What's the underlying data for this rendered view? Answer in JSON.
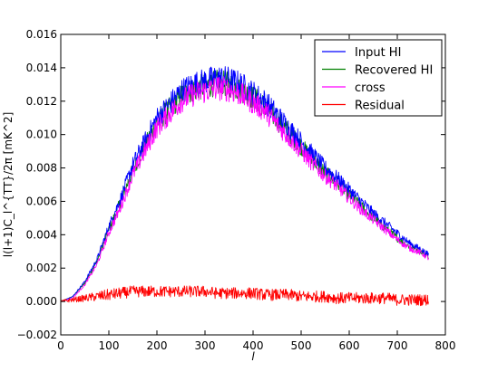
{
  "chart_data": {
    "type": "line",
    "title": "",
    "xlabel": "l",
    "ylabel": "l(l+1)C_l^{TT}/2π [mK^2]",
    "xlim": [
      0,
      800
    ],
    "ylim": [
      -0.002,
      0.016
    ],
    "xticks": [
      0,
      100,
      200,
      300,
      400,
      500,
      600,
      700,
      800
    ],
    "xtick_labels": [
      "0",
      "100",
      "200",
      "300",
      "400",
      "500",
      "600",
      "700",
      "800"
    ],
    "yticks": [
      -0.002,
      0.0,
      0.002,
      0.004,
      0.006,
      0.008,
      0.01,
      0.012,
      0.014,
      0.016
    ],
    "ytick_labels": [
      "−0.002",
      "0.000",
      "0.002",
      "0.004",
      "0.006",
      "0.008",
      "0.010",
      "0.012",
      "0.014",
      "0.016"
    ],
    "grid": false,
    "legend_position": "top-right",
    "series": [
      {
        "name": "Input HI",
        "color": "#0000ff",
        "x": [
          0,
          25,
          50,
          75,
          100,
          125,
          150,
          175,
          200,
          225,
          250,
          275,
          300,
          325,
          350,
          375,
          400,
          425,
          450,
          475,
          500,
          525,
          550,
          575,
          600,
          625,
          650,
          675,
          700,
          725,
          750,
          765
        ],
        "y": [
          0.0,
          0.0003,
          0.0012,
          0.0025,
          0.0045,
          0.0062,
          0.0082,
          0.0096,
          0.011,
          0.0118,
          0.0126,
          0.013,
          0.0132,
          0.0134,
          0.0133,
          0.013,
          0.0125,
          0.012,
          0.0112,
          0.0104,
          0.0096,
          0.0088,
          0.008,
          0.0074,
          0.0067,
          0.006,
          0.0053,
          0.0047,
          0.0041,
          0.0035,
          0.0031,
          0.0028
        ]
      },
      {
        "name": "Recovered HI",
        "color": "#008000",
        "x": [
          0,
          25,
          50,
          75,
          100,
          125,
          150,
          175,
          200,
          225,
          250,
          275,
          300,
          325,
          350,
          375,
          400,
          425,
          450,
          475,
          500,
          525,
          550,
          575,
          600,
          625,
          650,
          675,
          700,
          725,
          750,
          765
        ],
        "y": [
          0.0,
          0.0003,
          0.0011,
          0.0024,
          0.0043,
          0.006,
          0.0079,
          0.0093,
          0.0107,
          0.0115,
          0.0123,
          0.0127,
          0.0129,
          0.0131,
          0.013,
          0.0127,
          0.0122,
          0.0117,
          0.0109,
          0.0101,
          0.0093,
          0.0085,
          0.0077,
          0.0071,
          0.0064,
          0.0057,
          0.005,
          0.0044,
          0.0038,
          0.0033,
          0.003,
          0.0027
        ]
      },
      {
        "name": "cross",
        "color": "#ff00ff",
        "x": [
          0,
          25,
          50,
          75,
          100,
          125,
          150,
          175,
          200,
          225,
          250,
          275,
          300,
          325,
          350,
          375,
          400,
          425,
          450,
          475,
          500,
          525,
          550,
          575,
          600,
          625,
          650,
          675,
          700,
          725,
          750,
          765
        ],
        "y": [
          0.0,
          0.0002,
          0.001,
          0.0022,
          0.0041,
          0.0057,
          0.0076,
          0.009,
          0.0104,
          0.0112,
          0.012,
          0.0124,
          0.0126,
          0.0128,
          0.0127,
          0.0124,
          0.0119,
          0.0114,
          0.0106,
          0.0098,
          0.009,
          0.0082,
          0.0075,
          0.0069,
          0.0062,
          0.0055,
          0.0049,
          0.0043,
          0.0037,
          0.0032,
          0.0029,
          0.0026
        ]
      },
      {
        "name": "Residual",
        "color": "#ff0000",
        "x": [
          0,
          25,
          50,
          75,
          100,
          125,
          150,
          175,
          200,
          225,
          250,
          275,
          300,
          325,
          350,
          375,
          400,
          425,
          450,
          475,
          500,
          525,
          550,
          575,
          600,
          625,
          650,
          675,
          700,
          725,
          750,
          765
        ],
        "y": [
          0.0,
          0.0001,
          0.0002,
          0.0003,
          0.0004,
          0.0005,
          0.0006,
          0.0006,
          0.0006,
          0.0006,
          0.0006,
          0.0006,
          0.0006,
          0.0005,
          0.0005,
          0.0005,
          0.0005,
          0.0004,
          0.0004,
          0.0004,
          0.0003,
          0.0003,
          0.0003,
          0.0002,
          0.0002,
          0.0002,
          0.0002,
          0.0002,
          0.0001,
          0.0001,
          0.0001,
          0.0001
        ]
      }
    ]
  }
}
